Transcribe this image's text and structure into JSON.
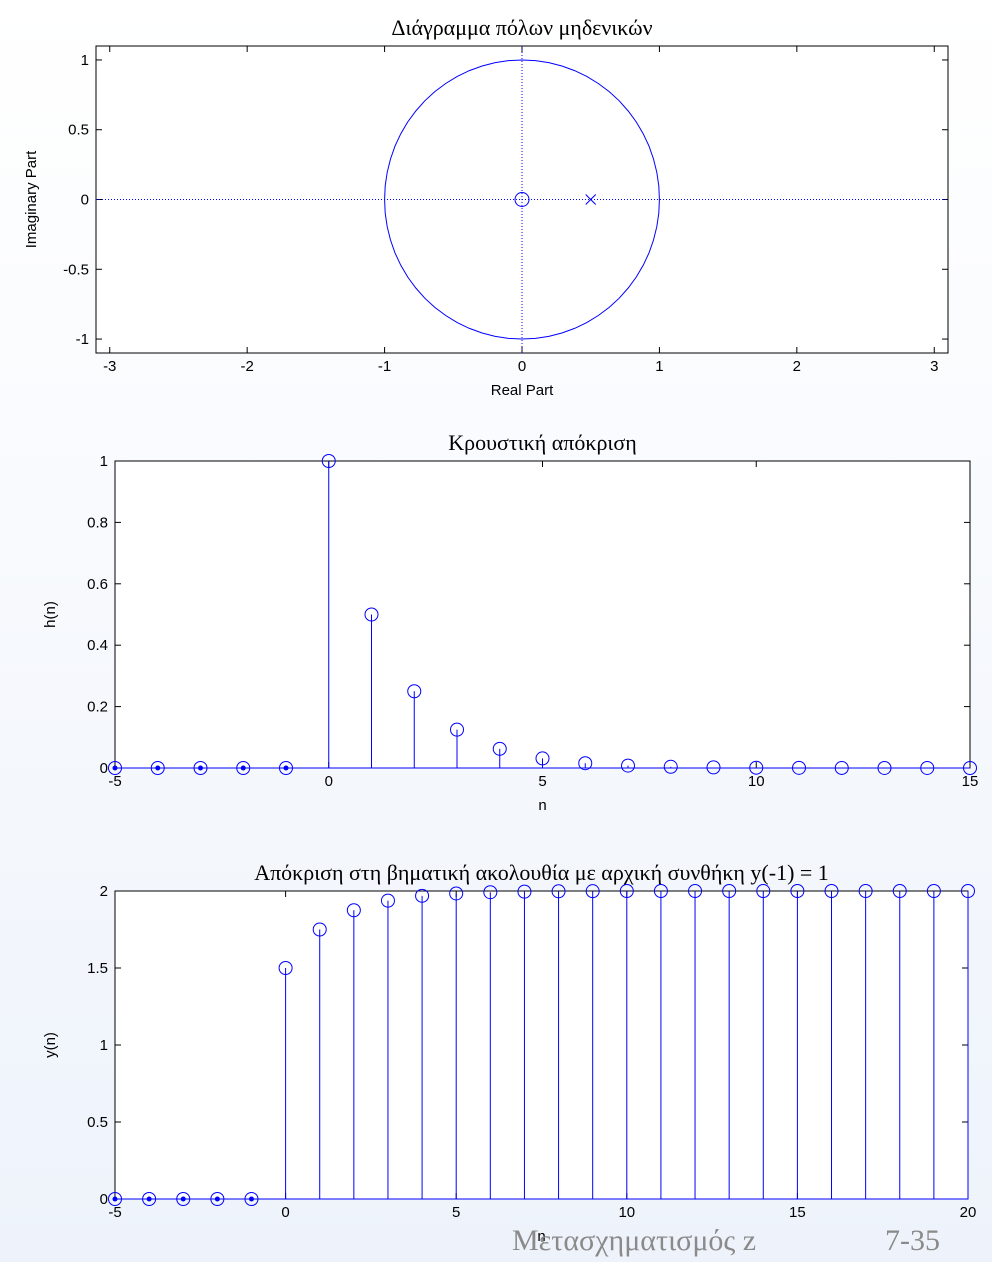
{
  "colors": {
    "accent": "#0000ff",
    "axis": "#000000",
    "footer": "#8a8a8a"
  },
  "footer": {
    "title": "Μετασχηματισμός z",
    "page": "7-35"
  },
  "chart_data": [
    {
      "type": "scatter",
      "title": "Διάγραμμα πόλων μηδενικών",
      "xlabel": "Real Part",
      "ylabel": "Imaginary Part",
      "xlim": [
        -3.1,
        3.1
      ],
      "ylim": [
        -1.1,
        1.1
      ],
      "xticks": [
        "-3",
        "-2",
        "-1",
        "0",
        "1",
        "2",
        "3"
      ],
      "yticks": [
        "-1",
        "-0.5",
        "0",
        "0.5",
        "1"
      ],
      "unit_circle": true,
      "zeros": [
        [
          0,
          0
        ]
      ],
      "poles": [
        [
          0.5,
          0
        ]
      ]
    },
    {
      "type": "stem",
      "title": "Κρουστική απόκριση",
      "xlabel": "n",
      "ylabel": "h(n)",
      "xlim": [
        -5,
        15
      ],
      "ylim": [
        0,
        1
      ],
      "xticks": [
        "-5",
        "0",
        "5",
        "10",
        "15"
      ],
      "yticks": [
        "0",
        "0.2",
        "0.4",
        "0.6",
        "0.8",
        "1"
      ],
      "x": [
        -5,
        -4,
        -3,
        -2,
        -1,
        0,
        1,
        2,
        3,
        4,
        5,
        6,
        7,
        8,
        9,
        10,
        11,
        12,
        13,
        14,
        15
      ],
      "values": [
        0,
        0,
        0,
        0,
        0,
        1,
        0.5,
        0.25,
        0.125,
        0.0625,
        0.03125,
        0.015625,
        0.0078,
        0.0039,
        0.002,
        0.001,
        0.0005,
        0.0002,
        0.0001,
        0.0001,
        0
      ]
    },
    {
      "type": "stem",
      "title": "Απόκριση στη βηματική ακολουθία με αρχική συνθήκη  y(-1) = 1",
      "xlabel": "n",
      "ylabel": "y(n)",
      "xlim": [
        -5,
        20
      ],
      "ylim": [
        0,
        2
      ],
      "xticks": [
        "-5",
        "0",
        "5",
        "10",
        "15",
        "20"
      ],
      "yticks": [
        "0",
        "0.5",
        "1",
        "1.5",
        "2"
      ],
      "x": [
        -5,
        -4,
        -3,
        -2,
        -1,
        0,
        1,
        2,
        3,
        4,
        5,
        6,
        7,
        8,
        9,
        10,
        11,
        12,
        13,
        14,
        15,
        16,
        17,
        18,
        19,
        20
      ],
      "values": [
        0,
        0,
        0,
        0,
        0,
        1.5,
        1.75,
        1.875,
        1.9375,
        1.96875,
        1.984,
        1.992,
        1.996,
        1.998,
        1.999,
        2,
        2,
        2,
        2,
        2,
        2,
        2,
        2,
        2,
        2,
        2
      ]
    }
  ]
}
